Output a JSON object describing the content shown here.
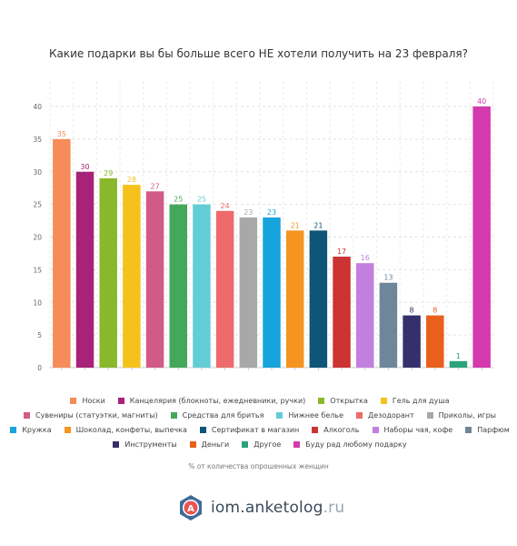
{
  "chart_data": {
    "type": "bar",
    "title": "Какие подарки вы бы больше всего НЕ хотели получить на 23 февраля?",
    "footnote": "% от количества опрошенных женщин",
    "ylim": [
      0,
      40
    ],
    "yticks": [
      0,
      5,
      10,
      15,
      20,
      25,
      30,
      35,
      40
    ],
    "grid": true,
    "legend_position": "bottom",
    "categories": [
      "Носки",
      "Канцелярия (блокноты, ежедневники, ручки)",
      "Открытка",
      "Гель для душа",
      "Сувениры (статуэтки, магниты)",
      "Средства для бритья",
      "Нижнее белье",
      "Дезодорант",
      "Приколы, игры",
      "Кружка",
      "Шоколад, конфеты, выпечка",
      "Сертификат в магазин",
      "Алкоголь",
      "Наборы чая, кофе",
      "Парфюм",
      "Инструменты",
      "Деньги",
      "Другое",
      "Буду рад любому подарку"
    ],
    "values": [
      35,
      30,
      29,
      28,
      27,
      25,
      25,
      24,
      23,
      23,
      21,
      21,
      17,
      16,
      13,
      8,
      8,
      1,
      40
    ],
    "colors": [
      "#f58c5a",
      "#a8227a",
      "#8ab82c",
      "#f5c21b",
      "#d25a87",
      "#43a85a",
      "#63cdd6",
      "#ef6a6a",
      "#a8a8a8",
      "#17a3dc",
      "#f59421",
      "#0f5577",
      "#cc3333",
      "#c27fe0",
      "#6e8699",
      "#35306b",
      "#e8601c",
      "#2aa37a",
      "#d43aad"
    ],
    "legend_rows": [
      [
        0,
        1,
        2,
        3
      ],
      [
        4,
        5,
        6,
        7,
        8
      ],
      [
        9,
        10,
        11,
        12,
        13,
        14
      ],
      [
        15,
        16,
        17,
        18
      ]
    ]
  },
  "logo": {
    "text_main": "iom.anketolog",
    "text_suffix": ".ru",
    "icon_letter": "А"
  }
}
